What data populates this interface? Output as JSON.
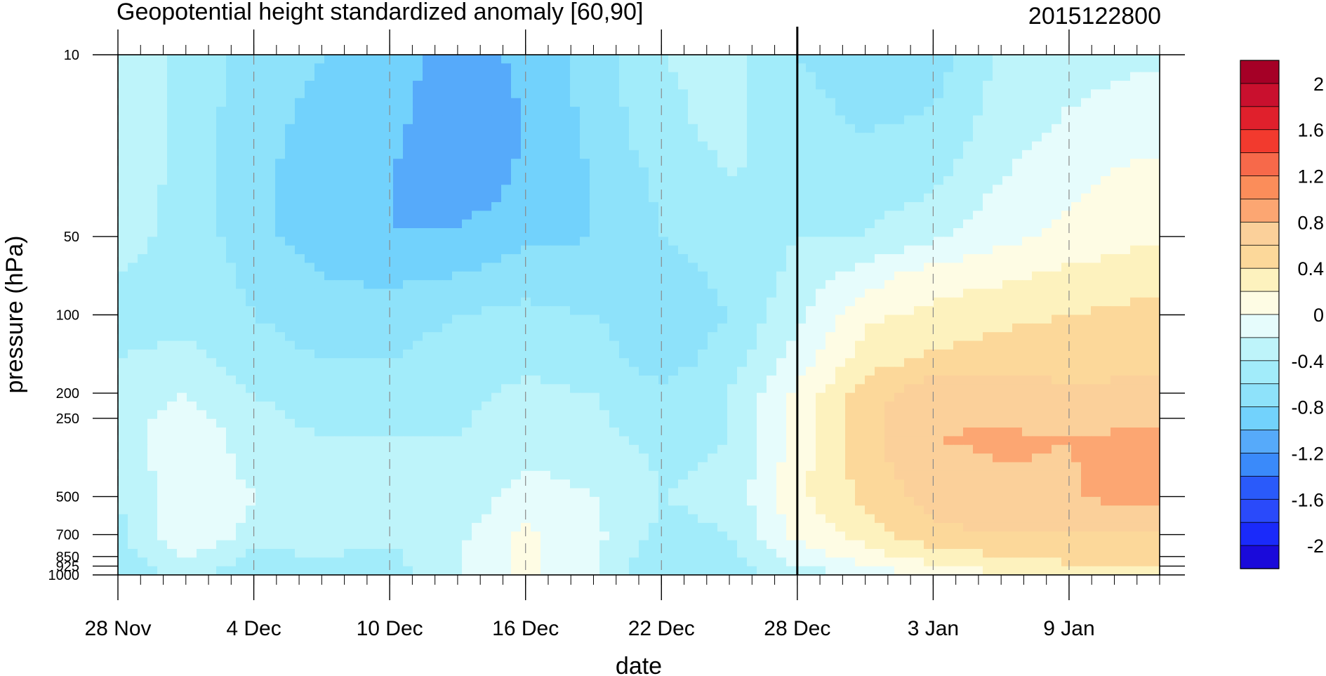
{
  "chart_data": {
    "type": "contour",
    "title": "Geopotential height standardized anomaly [60,90]",
    "date_label": "2015122800",
    "xlabel": "date",
    "ylabel": "pressure (hPa)",
    "y_scale": "log",
    "y_reversed": true,
    "xlim": [
      "2015-11-28",
      "2016-01-13"
    ],
    "ylim": [
      1000,
      10
    ],
    "x_ticks": [
      {
        "label": "28 Nov",
        "date": "2015-11-28"
      },
      {
        "label": "4 Dec",
        "date": "2015-12-04"
      },
      {
        "label": "10 Dec",
        "date": "2015-12-10"
      },
      {
        "label": "16 Dec",
        "date": "2015-12-16"
      },
      {
        "label": "22 Dec",
        "date": "2015-12-22"
      },
      {
        "label": "28 Dec",
        "date": "2015-12-28"
      },
      {
        "label": "3 Jan",
        "date": "2016-01-03"
      },
      {
        "label": "9 Jan",
        "date": "2016-01-09"
      }
    ],
    "y_ticks": [
      {
        "label": "10",
        "value": 10
      },
      {
        "label": "50",
        "value": 50
      },
      {
        "label": "100",
        "value": 100
      },
      {
        "label": "200",
        "value": 200
      },
      {
        "label": "250",
        "value": 250
      },
      {
        "label": "500",
        "value": 500
      },
      {
        "label": "700",
        "value": 700
      },
      {
        "label": "850",
        "value": 850
      },
      {
        "label": "925",
        "value": 925
      },
      {
        "label": "1000",
        "value": 1000
      }
    ],
    "vertical_marker_date": "2015-12-28",
    "colorbar": {
      "labels": [
        "2",
        "1.6",
        "1.2",
        "0.8",
        "0.4",
        "0",
        "-0.4",
        "-0.8",
        "-1.2",
        "-1.6",
        "-2"
      ],
      "colors_top_to_bottom": [
        "#A50026",
        "#C9102E",
        "#E0202C",
        "#F23A2E",
        "#F7694A",
        "#FB8D5A",
        "#FCA672",
        "#FBD09A",
        "#FCD89A",
        "#FDF2BE",
        "#FEFCE4",
        "#E6FCFC",
        "#BEF4FA",
        "#A2ECFA",
        "#8EE2FA",
        "#72D2FC",
        "#56AAFA",
        "#3A8AFA",
        "#2A5AFA",
        "#2A4AFA",
        "#1A2AFA",
        "#1A0ADA"
      ]
    },
    "anomaly_grid": {
      "levels_hpa": [
        10,
        20,
        30,
        50,
        70,
        100,
        150,
        200,
        300,
        500,
        700,
        850,
        1000
      ],
      "dates": [
        "2015-11-28",
        "2015-12-01",
        "2015-12-04",
        "2015-12-07",
        "2015-12-10",
        "2015-12-13",
        "2015-12-16",
        "2015-12-19",
        "2015-12-22",
        "2015-12-25",
        "2015-12-28",
        "2015-12-31",
        "2016-01-03",
        "2016-01-06",
        "2016-01-09",
        "2016-01-12"
      ],
      "values": [
        [
          -0.3,
          -0.45,
          -0.72,
          -0.8,
          -0.9,
          -1.1,
          -0.95,
          -0.7,
          -0.4,
          -0.35,
          -0.6,
          -0.75,
          -0.7,
          -0.35,
          -0.3,
          -0.25
        ],
        [
          -0.3,
          -0.45,
          -0.75,
          -0.85,
          -0.95,
          -1.15,
          -1.0,
          -0.75,
          -0.45,
          -0.35,
          -0.5,
          -0.6,
          -0.55,
          -0.3,
          -0.15,
          -0.05
        ],
        [
          -0.3,
          -0.45,
          -0.75,
          -0.9,
          -1.0,
          -1.2,
          -0.95,
          -0.8,
          -0.55,
          -0.4,
          -0.45,
          -0.5,
          -0.45,
          -0.2,
          -0.05,
          0.05
        ],
        [
          -0.35,
          -0.45,
          -0.75,
          -0.9,
          -1.0,
          -0.95,
          -0.85,
          -0.8,
          -0.6,
          -0.45,
          -0.4,
          -0.4,
          -0.25,
          -0.05,
          0.05,
          0.15
        ],
        [
          -0.4,
          -0.45,
          -0.65,
          -0.8,
          -0.85,
          -0.8,
          -0.7,
          -0.75,
          -0.7,
          -0.55,
          -0.35,
          -0.1,
          0.1,
          0.15,
          0.25,
          0.3
        ],
        [
          -0.45,
          -0.45,
          -0.6,
          -0.7,
          -0.7,
          -0.6,
          -0.55,
          -0.6,
          -0.75,
          -0.6,
          -0.25,
          0.15,
          0.25,
          0.35,
          0.4,
          0.45
        ],
        [
          -0.4,
          -0.35,
          -0.5,
          -0.6,
          -0.6,
          -0.5,
          -0.45,
          -0.5,
          -0.7,
          -0.5,
          -0.1,
          0.3,
          0.45,
          0.5,
          0.5,
          0.55
        ],
        [
          -0.3,
          -0.2,
          -0.4,
          -0.5,
          -0.5,
          -0.45,
          -0.35,
          -0.4,
          -0.55,
          -0.4,
          0.05,
          0.5,
          0.75,
          0.75,
          0.65,
          0.65
        ],
        [
          -0.3,
          -0.05,
          -0.3,
          -0.4,
          -0.4,
          -0.4,
          -0.3,
          -0.35,
          -0.45,
          -0.4,
          0.1,
          0.55,
          0.8,
          0.82,
          0.8,
          0.85
        ],
        [
          -0.4,
          -0.05,
          -0.2,
          -0.3,
          -0.4,
          -0.35,
          -0.1,
          -0.2,
          -0.4,
          -0.35,
          0.15,
          0.45,
          0.7,
          0.78,
          0.78,
          0.9
        ],
        [
          -0.45,
          -0.05,
          -0.25,
          -0.3,
          -0.35,
          -0.25,
          0.05,
          -0.15,
          -0.45,
          -0.4,
          0.05,
          0.3,
          0.55,
          0.6,
          0.6,
          0.6
        ],
        [
          -0.5,
          -0.15,
          -0.45,
          -0.4,
          -0.45,
          -0.2,
          0.05,
          -0.15,
          -0.55,
          -0.45,
          -0.1,
          0.1,
          0.3,
          0.4,
          0.45,
          0.45
        ],
        [
          -0.6,
          -0.3,
          -0.6,
          -0.45,
          -0.5,
          -0.2,
          0.05,
          -0.2,
          -0.6,
          -0.5,
          -0.35,
          -0.15,
          0.05,
          0.2,
          0.3,
          0.35
        ]
      ]
    }
  }
}
